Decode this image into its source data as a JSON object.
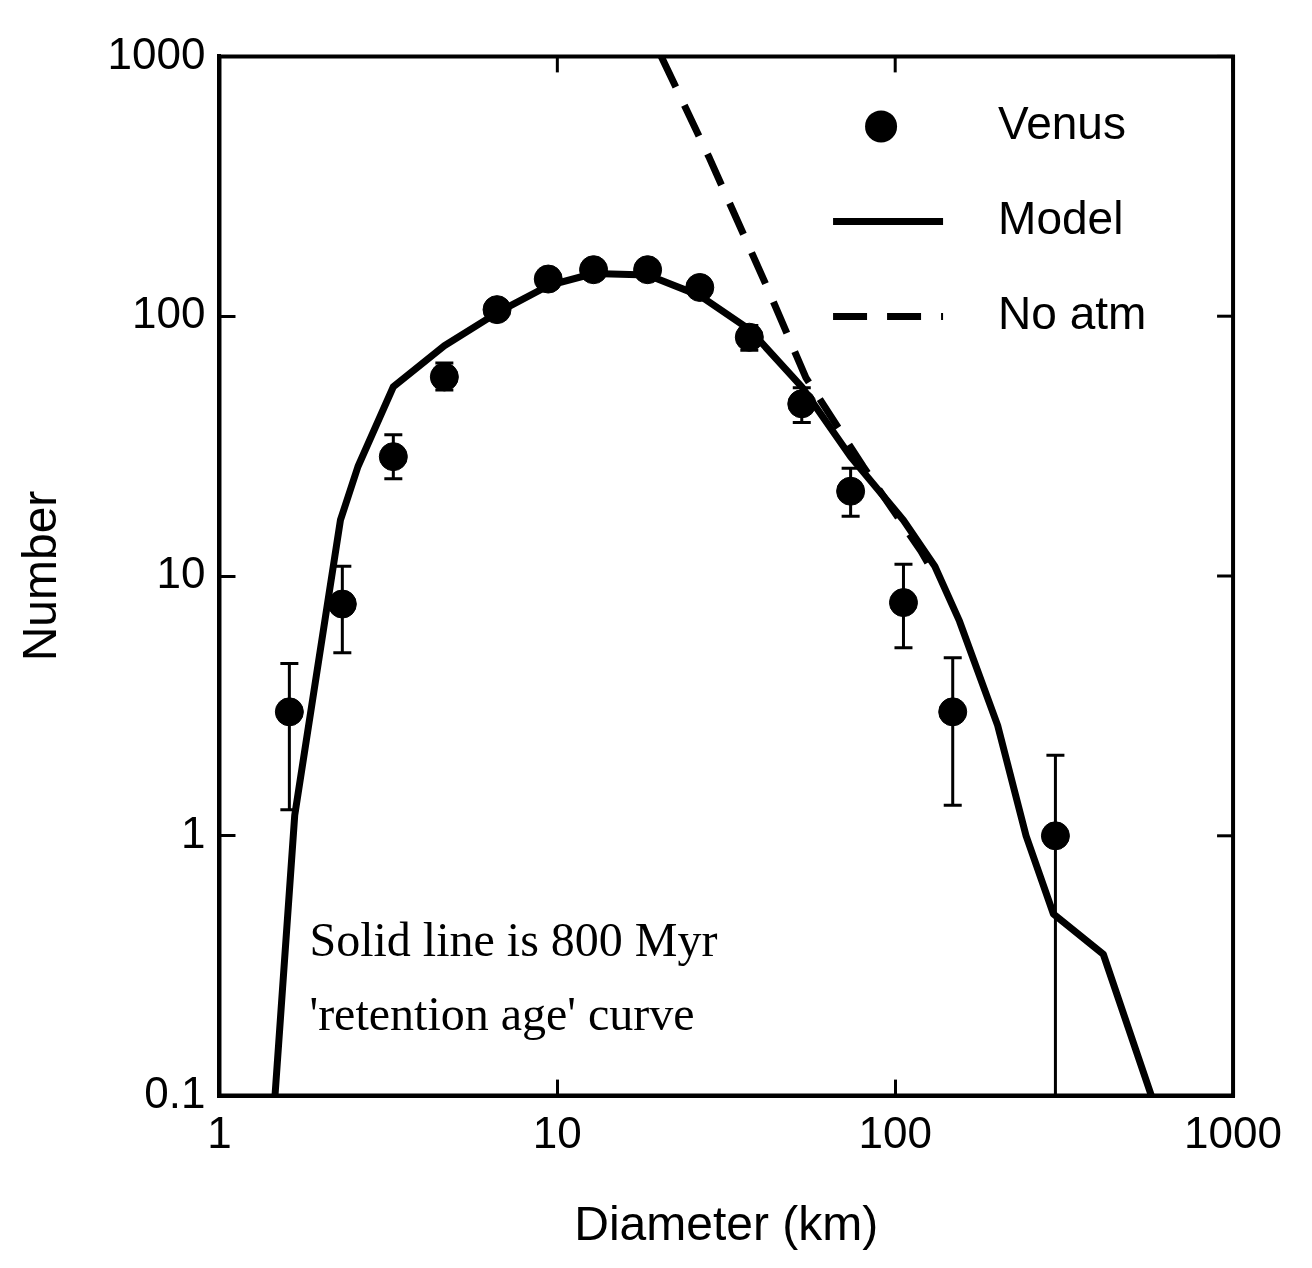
{
  "chart_data": {
    "type": "scatter",
    "xlabel": "Diameter (km)",
    "ylabel": "Number",
    "log": "xy",
    "xlim": [
      1,
      1000
    ],
    "ylim": [
      0.1,
      1000
    ],
    "xticks": [
      1,
      10,
      100,
      1000
    ],
    "yticks": [
      0.1,
      1,
      10,
      100,
      1000
    ],
    "grid": false,
    "legend": "top right",
    "annotations": [
      "Solid line is 800 Myr 'retention age' curve"
    ],
    "series": [
      {
        "name": "Venus",
        "marker": "circle",
        "color": "#000000",
        "x": [
          1.61,
          2.31,
          3.27,
          4.63,
          6.63,
          9.4,
          12.8,
          18.5,
          26.4,
          37,
          52.9,
          73.8,
          105.8,
          148,
          298
        ],
        "values": [
          3,
          7.8,
          28.8,
          58.4,
          106,
          139,
          151,
          151,
          129,
          83,
          46,
          21.2,
          7.9,
          3,
          1
        ],
        "errors": [
          [
            1.26,
            4.6
          ],
          [
            5.07,
            10.9
          ],
          [
            23.7,
            35
          ],
          [
            52,
            66
          ],
          null,
          null,
          null,
          null,
          null,
          [
            74,
            92
          ],
          [
            39,
            53
          ],
          [
            17,
            26
          ],
          [
            5.3,
            11.1
          ],
          [
            1.31,
            4.85
          ],
          [
            0.1,
            2.04
          ]
        ]
      },
      {
        "name": "Model",
        "type": "line",
        "line_style": "solid",
        "marker": "none",
        "color": "#000000",
        "x": [
          1.46,
          1.67,
          2.28,
          2.57,
          3.27,
          4.63,
          6.63,
          9.4,
          12.8,
          18.5,
          26.4,
          37,
          52.9,
          73.8,
          105.8,
          131,
          155,
          201,
          244,
          294,
          413,
          573
        ],
        "values": [
          0.1,
          1.2,
          16.4,
          26.4,
          53.5,
          77,
          103,
          131,
          146,
          144,
          120,
          89,
          53.5,
          28.8,
          16.4,
          10.9,
          6.7,
          2.66,
          1.0,
          0.5,
          0.35,
          0.1
        ]
      },
      {
        "name": "No atm",
        "type": "line",
        "line_style": "dashed",
        "marker": "none",
        "color": "#000000",
        "x": [
          20.3,
          28.2,
          41.8,
          54.4,
          80.4,
          119,
          131.5
        ],
        "values": [
          1000,
          406,
          129,
          58,
          26.4,
          12.5,
          10
        ]
      }
    ]
  }
}
